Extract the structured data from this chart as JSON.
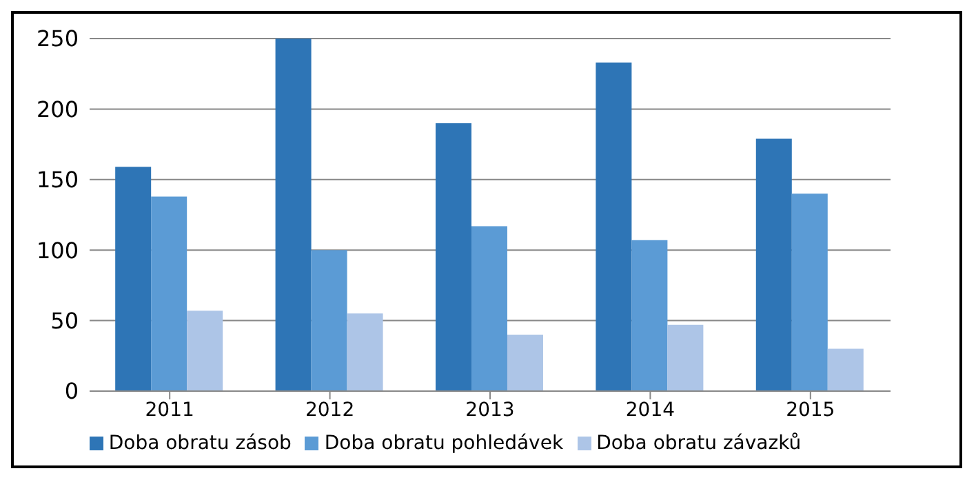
{
  "chart_data": {
    "type": "bar",
    "categories": [
      "2011",
      "2012",
      "2013",
      "2014",
      "2015"
    ],
    "series": [
      {
        "name": "Doba obratu zásob",
        "color": "#2e75b6",
        "values": [
          159,
          250,
          190,
          233,
          179
        ]
      },
      {
        "name": "Doba obratu pohledávek",
        "color": "#5b9bd5",
        "values": [
          138,
          100,
          117,
          107,
          140
        ]
      },
      {
        "name": "Doba obratu závazků",
        "color": "#adc5e7",
        "values": [
          57,
          55,
          40,
          47,
          30
        ]
      }
    ],
    "ylim": [
      0,
      250
    ],
    "yticks": [
      0,
      50,
      100,
      150,
      200,
      250
    ],
    "grid": "y",
    "legend": "bottom"
  }
}
